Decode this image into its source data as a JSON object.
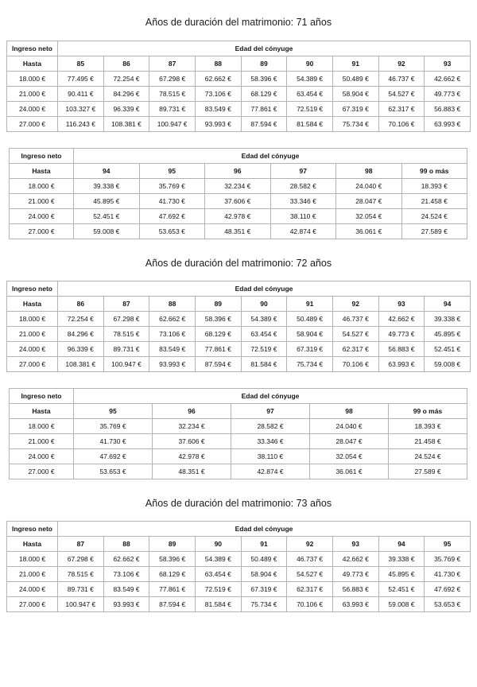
{
  "document": {
    "sections": [
      {
        "title": "Años de duración del matrimonio: 71 años",
        "tables": [
          {
            "corner_header": "Ingreso neto",
            "group_header": "Edad del cónyuge",
            "row_header": "Hasta",
            "age_columns": [
              "85",
              "86",
              "87",
              "88",
              "89",
              "90",
              "91",
              "92",
              "93"
            ],
            "rows": [
              {
                "income": "18.000 €",
                "values": [
                  "77.495 €",
                  "72.254 €",
                  "67.298 €",
                  "62.662 €",
                  "58.396 €",
                  "54.389 €",
                  "50.489 €",
                  "46.737 €",
                  "42.662 €"
                ]
              },
              {
                "income": "21.000 €",
                "values": [
                  "90.411 €",
                  "84.296 €",
                  "78.515 €",
                  "73.106 €",
                  "68.129 €",
                  "63.454 €",
                  "58.904 €",
                  "54.527 €",
                  "49.773 €"
                ]
              },
              {
                "income": "24.000 €",
                "values": [
                  "103.327 €",
                  "96.339 €",
                  "89.731 €",
                  "83.549 €",
                  "77.861 €",
                  "72.519 €",
                  "67.319 €",
                  "62.317 €",
                  "56.883 €"
                ]
              },
              {
                "income": "27.000 €",
                "values": [
                  "116.243 €",
                  "108.381 €",
                  "100.947 €",
                  "93.993 €",
                  "87.594 €",
                  "81.584 €",
                  "75.734 €",
                  "70.106 €",
                  "63.993 €"
                ]
              }
            ]
          },
          {
            "corner_header": "Ingreso neto",
            "group_header": "Edad del cónyuge",
            "row_header": "Hasta",
            "age_columns": [
              "94",
              "95",
              "96",
              "97",
              "98",
              "99 o más"
            ],
            "rows": [
              {
                "income": "18.000 €",
                "values": [
                  "39.338 €",
                  "35.769 €",
                  "32.234 €",
                  "28.582 €",
                  "24.040 €",
                  "18.393 €"
                ]
              },
              {
                "income": "21.000 €",
                "values": [
                  "45.895 €",
                  "41.730 €",
                  "37.606 €",
                  "33.346 €",
                  "28.047 €",
                  "21.458 €"
                ]
              },
              {
                "income": "24.000 €",
                "values": [
                  "52.451 €",
                  "47.692 €",
                  "42.978 €",
                  "38.110 €",
                  "32.054 €",
                  "24.524 €"
                ]
              },
              {
                "income": "27.000 €",
                "values": [
                  "59.008 €",
                  "53.653 €",
                  "48.351 €",
                  "42.874 €",
                  "36.061 €",
                  "27.589 €"
                ]
              }
            ]
          }
        ]
      },
      {
        "title": "Años de duración del matrimonio: 72 años",
        "tables": [
          {
            "corner_header": "Ingreso neto",
            "group_header": "Edad del cónyuge",
            "row_header": "Hasta",
            "age_columns": [
              "86",
              "87",
              "88",
              "89",
              "90",
              "91",
              "92",
              "93",
              "94"
            ],
            "rows": [
              {
                "income": "18.000 €",
                "values": [
                  "72.254 €",
                  "67.298 €",
                  "62.662 €",
                  "58.396 €",
                  "54.389 €",
                  "50.489 €",
                  "46.737 €",
                  "42.662 €",
                  "39.338 €"
                ]
              },
              {
                "income": "21.000 €",
                "values": [
                  "84.296 €",
                  "78.515 €",
                  "73.106 €",
                  "68.129 €",
                  "63.454 €",
                  "58.904 €",
                  "54.527 €",
                  "49.773 €",
                  "45.895 €"
                ]
              },
              {
                "income": "24.000 €",
                "values": [
                  "96.339 €",
                  "89.731 €",
                  "83.549 €",
                  "77.861 €",
                  "72.519 €",
                  "67.319 €",
                  "62.317 €",
                  "56.883 €",
                  "52.451 €"
                ]
              },
              {
                "income": "27.000 €",
                "values": [
                  "108.381 €",
                  "100.947 €",
                  "93.993 €",
                  "87.594 €",
                  "81.584 €",
                  "75.734 €",
                  "70.106 €",
                  "63.993 €",
                  "59.008 €"
                ]
              }
            ]
          },
          {
            "corner_header": "Ingreso neto",
            "group_header": "Edad del cónyuge",
            "row_header": "Hasta",
            "age_columns": [
              "95",
              "96",
              "97",
              "98",
              "99 o más"
            ],
            "rows": [
              {
                "income": "18.000 €",
                "values": [
                  "35.769 €",
                  "32.234 €",
                  "28.582 €",
                  "24.040 €",
                  "18.393 €"
                ]
              },
              {
                "income": "21.000 €",
                "values": [
                  "41.730 €",
                  "37.606 €",
                  "33.346 €",
                  "28.047 €",
                  "21.458 €"
                ]
              },
              {
                "income": "24.000 €",
                "values": [
                  "47.692 €",
                  "42.978 €",
                  "38.110 €",
                  "32.054 €",
                  "24.524 €"
                ]
              },
              {
                "income": "27.000 €",
                "values": [
                  "53.653 €",
                  "48.351 €",
                  "42.874 €",
                  "36.061 €",
                  "27.589 €"
                ]
              }
            ]
          }
        ]
      },
      {
        "title": "Años de duración del matrimonio: 73 años",
        "tables": [
          {
            "corner_header": "Ingreso neto",
            "group_header": "Edad del cónyuge",
            "row_header": "Hasta",
            "age_columns": [
              "87",
              "88",
              "89",
              "90",
              "91",
              "92",
              "93",
              "94",
              "95"
            ],
            "rows": [
              {
                "income": "18.000 €",
                "values": [
                  "67.298 €",
                  "62.662 €",
                  "58.396 €",
                  "54.389 €",
                  "50.489 €",
                  "46.737 €",
                  "42.662 €",
                  "39.338 €",
                  "35.769 €"
                ]
              },
              {
                "income": "21.000 €",
                "values": [
                  "78.515 €",
                  "73.106 €",
                  "68.129 €",
                  "63.454 €",
                  "58.904 €",
                  "54.527 €",
                  "49.773 €",
                  "45.895 €",
                  "41.730 €"
                ]
              },
              {
                "income": "24.000 €",
                "values": [
                  "89.731 €",
                  "83.549 €",
                  "77.861 €",
                  "72.519 €",
                  "67.319 €",
                  "62.317 €",
                  "56.883 €",
                  "52.451 €",
                  "47.692 €"
                ]
              },
              {
                "income": "27.000 €",
                "values": [
                  "100.947 €",
                  "93.993 €",
                  "87.594 €",
                  "81.584 €",
                  "75.734 €",
                  "70.106 €",
                  "63.993 €",
                  "59.008 €",
                  "53.653 €"
                ]
              }
            ]
          }
        ]
      }
    ]
  }
}
